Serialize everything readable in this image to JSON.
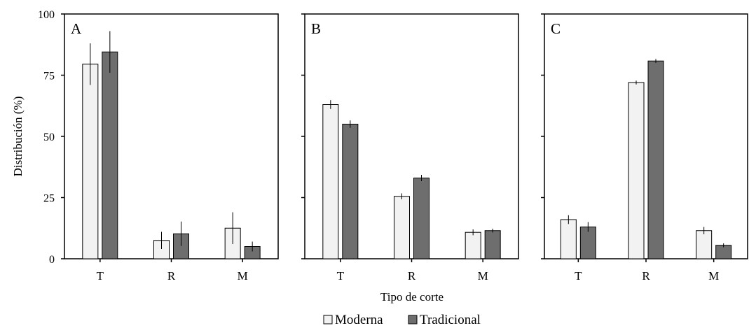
{
  "chart_data": [
    {
      "type": "bar",
      "panel_label": "A",
      "categories": [
        "T",
        "R",
        "M"
      ],
      "series": [
        {
          "name": "Moderna",
          "values": [
            79.5,
            7.5,
            12.5
          ],
          "errors": [
            8.5,
            3.5,
            6.5
          ]
        },
        {
          "name": "Tradicional",
          "values": [
            84.5,
            10.2,
            5.0
          ],
          "errors": [
            8.5,
            5.0,
            2.0
          ]
        }
      ],
      "ylim": [
        0,
        100
      ],
      "yticks": [
        0,
        25,
        50,
        75,
        100
      ],
      "ylabel": "Distribución (%)",
      "xlabel": ""
    },
    {
      "type": "bar",
      "panel_label": "B",
      "categories": [
        "T",
        "R",
        "M"
      ],
      "series": [
        {
          "name": "Moderna",
          "values": [
            63.0,
            25.5,
            10.8
          ],
          "errors": [
            1.8,
            1.2,
            1.2
          ]
        },
        {
          "name": "Tradicional",
          "values": [
            55.0,
            33.0,
            11.5
          ],
          "errors": [
            1.5,
            1.3,
            0.8
          ]
        }
      ],
      "ylim": [
        0,
        100
      ],
      "xlabel": "Tipo de corte"
    },
    {
      "type": "bar",
      "panel_label": "C",
      "categories": [
        "T",
        "R",
        "M"
      ],
      "series": [
        {
          "name": "Moderna",
          "values": [
            16.0,
            72.0,
            11.5
          ],
          "errors": [
            1.8,
            0.8,
            1.5
          ]
        },
        {
          "name": "Tradicional",
          "values": [
            13.0,
            80.8,
            5.5
          ],
          "errors": [
            2.0,
            0.8,
            0.8
          ]
        }
      ],
      "ylim": [
        0,
        100
      ],
      "xlabel": ""
    }
  ],
  "legend": {
    "position": "bottom-center",
    "items": [
      {
        "label": "Moderna",
        "color": "#f2f2f2"
      },
      {
        "label": "Tradicional",
        "color": "#6e6e6e"
      }
    ]
  },
  "colors": {
    "moderna": "#f2f2f2",
    "tradicional": "#6e6e6e",
    "axis": "#000000"
  }
}
